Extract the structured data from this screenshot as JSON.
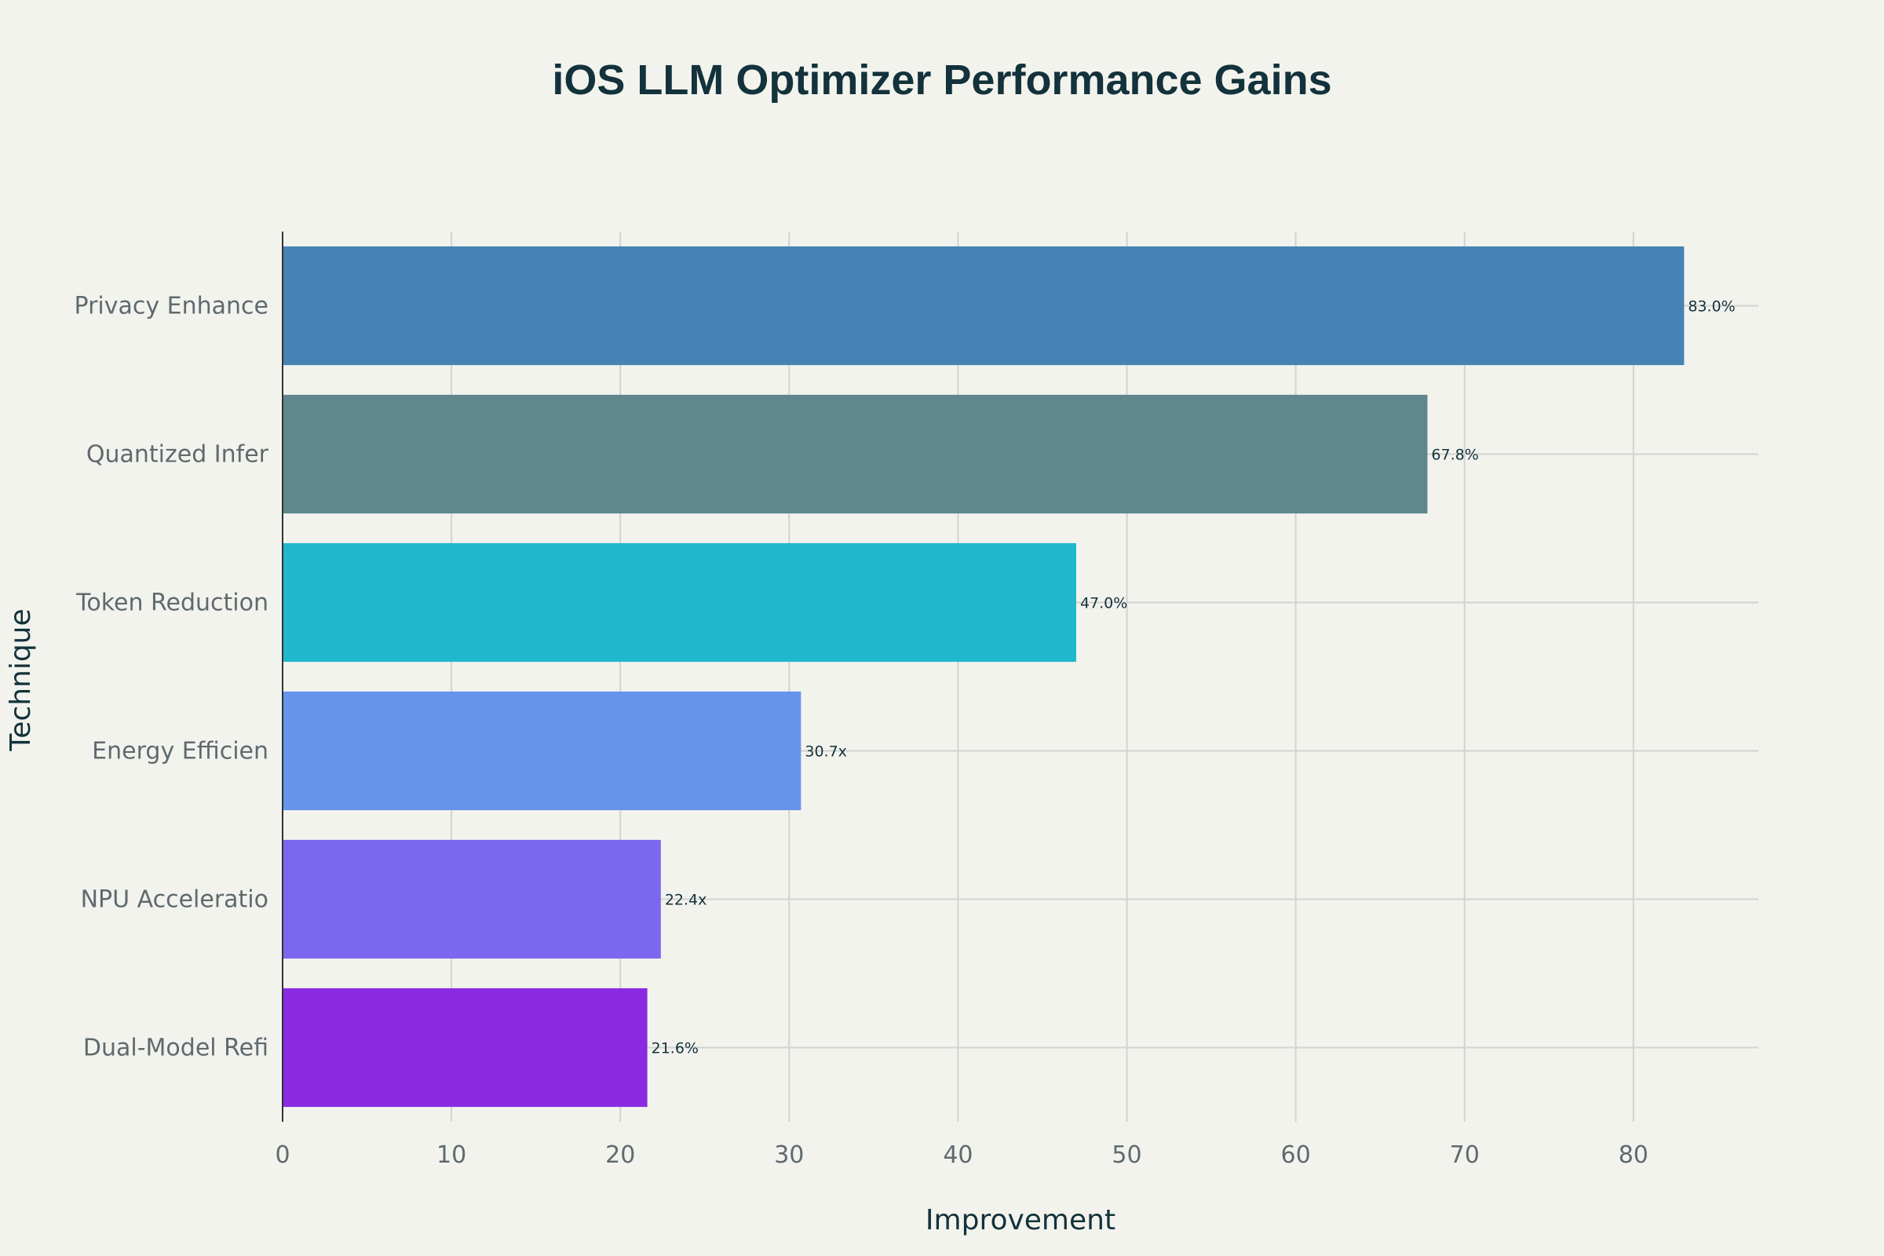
{
  "chart_data": {
    "type": "bar",
    "orientation": "horizontal",
    "title": "iOS LLM Optimizer Performance Gains",
    "xlabel": "Improvement",
    "ylabel": "Technique",
    "xlim": [
      0,
      87.4
    ],
    "x_ticks": [
      0,
      10,
      20,
      30,
      40,
      50,
      60,
      70,
      80
    ],
    "grid": true,
    "legend": "none",
    "categories": [
      "Privacy Enhance",
      "Quantized Infer",
      "Token Reduction",
      "Energy Efficien",
      "NPU Acceleratio",
      "Dual-Model Refi"
    ],
    "values": [
      83.0,
      67.8,
      47.0,
      30.7,
      22.4,
      21.6
    ],
    "data_labels": [
      "83.0%",
      "67.8%",
      "47.0%",
      "30.7x",
      "22.4x",
      "21.6%"
    ],
    "colors": [
      "#4682b4",
      "#5f878c",
      "#21b7cd",
      "#6694eb",
      "#7b68ee",
      "#8a2be2"
    ]
  }
}
